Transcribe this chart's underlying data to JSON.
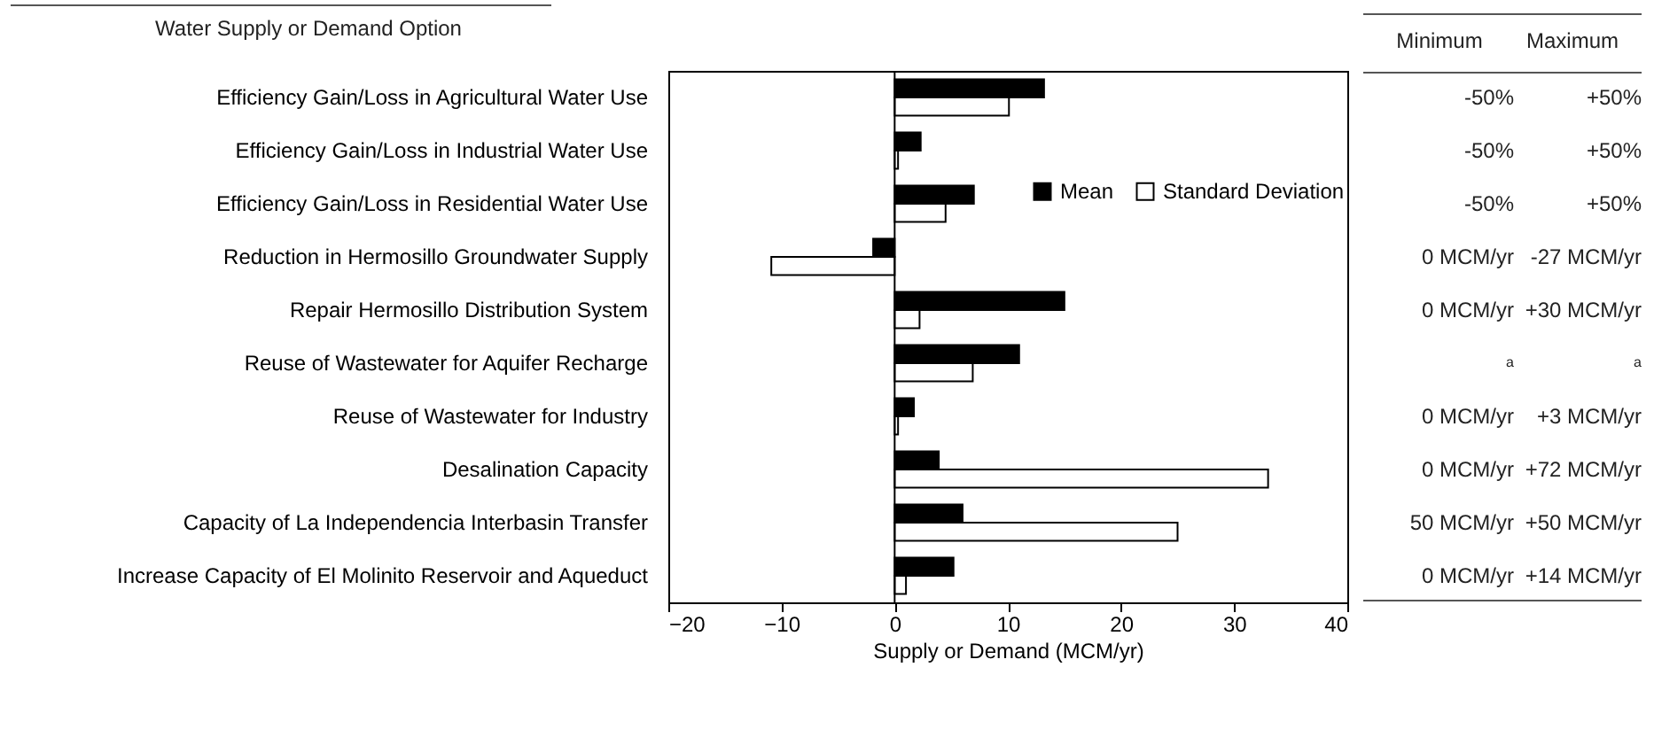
{
  "chart_data": {
    "type": "bar",
    "orientation": "horizontal",
    "categories": [
      "Efficiency Gain/Loss in Agricultural Water Use",
      "Efficiency Gain/Loss in Industrial Water Use",
      "Efficiency Gain/Loss in Residential Water Use",
      "Reduction in Hermosillo Groundwater Supply",
      "Repair Hermosillo Distribution System",
      "Reuse of Wastewater for Aquifer Recharge",
      "Reuse of Wastewater for Industry",
      "Desalination Capacity",
      "Capacity of La Independencia Interbasin Transfer",
      "Increase Capacity of El Molinito Reservoir and Aqueduct"
    ],
    "series": [
      {
        "name": "Mean",
        "color": "#000000",
        "values": [
          13.2,
          2.3,
          7.0,
          -1.9,
          15.0,
          11.0,
          1.7,
          3.9,
          6.0,
          5.2
        ]
      },
      {
        "name": "Standard Deviation",
        "color": "#ffffff",
        "values": [
          10.1,
          0.3,
          4.5,
          -10.9,
          2.2,
          6.9,
          0.3,
          33.0,
          25.0,
          1.0
        ]
      }
    ],
    "xlim": [
      -20,
      40
    ],
    "xticks": [
      -20,
      -10,
      0,
      10,
      20,
      30,
      40
    ],
    "xlabel": "Supply or Demand (MCM/yr)",
    "grid": false,
    "legend": "right",
    "ref_lines": [
      {
        "axis": "x",
        "value": 0
      }
    ],
    "annotations": [
      "Water Supply or Demand Option",
      "Minimum",
      "Maximum",
      "-50%",
      "+50%",
      "-50%",
      "+50%",
      "-50%",
      "+50%",
      "0 MCM/yr",
      "-27 MCM/yr",
      "0 MCM/yr",
      "+30 MCM/yr",
      "a",
      "a",
      "0 MCM/yr",
      "+3 MCM/yr",
      "0 MCM/yr",
      "+72 MCM/yr",
      "50 MCM/yr",
      "+50 MCM/yr",
      "0 MCM/yr",
      "+14 MCM/yr"
    ]
  }
}
